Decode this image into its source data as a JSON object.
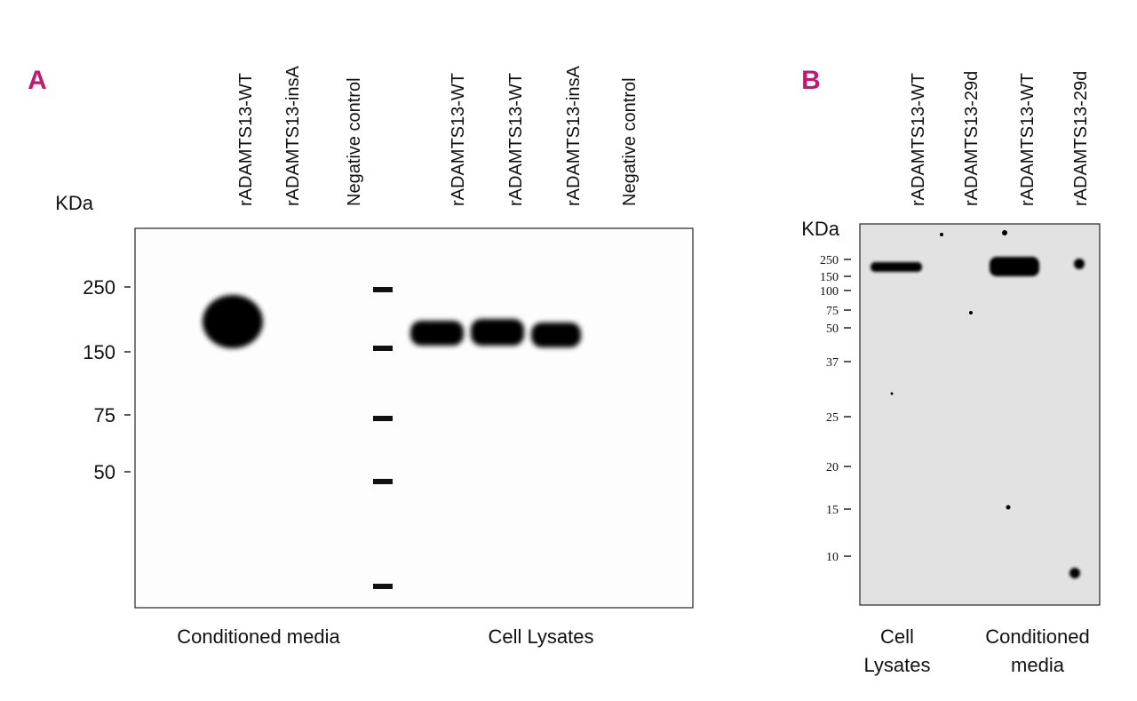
{
  "panels": [
    {
      "label": "A",
      "kda_label": "KDa",
      "lanes": [
        "rADAMTS13-WT",
        "rADAMTS13-insA",
        "Negative control",
        "rADAMTS13-WT",
        "rADAMTS13-WT",
        "rADAMTS13-insA",
        "Negative control"
      ],
      "markers": [
        "250",
        "150",
        "75",
        "50"
      ],
      "groups": [
        {
          "lines": [
            "Conditioned media"
          ]
        },
        {
          "lines": [
            "Cell Lysates"
          ]
        }
      ]
    },
    {
      "label": "B",
      "kda_label": "KDa",
      "lanes": [
        "rADAMTS13-WT",
        "rADAMTS13-29d",
        "rADAMTS13-WT",
        "rADAMTS13-29d"
      ],
      "markers": [
        "250",
        "150",
        "100",
        "75",
        "50",
        "37",
        "25",
        "20",
        "15",
        "10"
      ],
      "groups": [
        {
          "lines": [
            "Cell",
            "Lysates"
          ]
        },
        {
          "lines": [
            "Conditioned",
            "media"
          ]
        }
      ]
    }
  ]
}
